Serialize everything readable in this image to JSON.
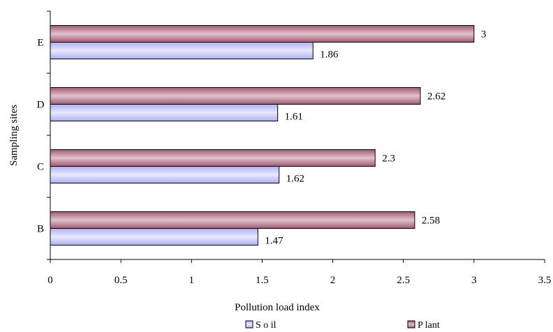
{
  "chart_data": {
    "type": "bar",
    "orientation": "horizontal",
    "categories": [
      "B",
      "C",
      "D",
      "E"
    ],
    "series": [
      {
        "name": "Soil",
        "values": [
          1.47,
          1.62,
          1.61,
          1.86
        ],
        "color": "#c8c8ff"
      },
      {
        "name": "Plant",
        "values": [
          2.58,
          2.3,
          2.62,
          3
        ],
        "color": "#c07890"
      }
    ],
    "data_labels": {
      "Soil": [
        "1.47",
        "1.62",
        "1.61",
        "1.86"
      ],
      "Plant": [
        "2.58",
        "2.3",
        "2.62",
        "3"
      ]
    },
    "xlabel": "Pollution load index",
    "ylabel": "Sampling sites",
    "xlim": [
      0,
      3.5
    ],
    "xticks": [
      "0",
      "0.5",
      "1",
      "1.5",
      "2",
      "2.5",
      "3",
      "3.5"
    ],
    "grid": false,
    "legend_position": "bottom",
    "legend_labels": [
      "S o il",
      "P lant"
    ]
  }
}
